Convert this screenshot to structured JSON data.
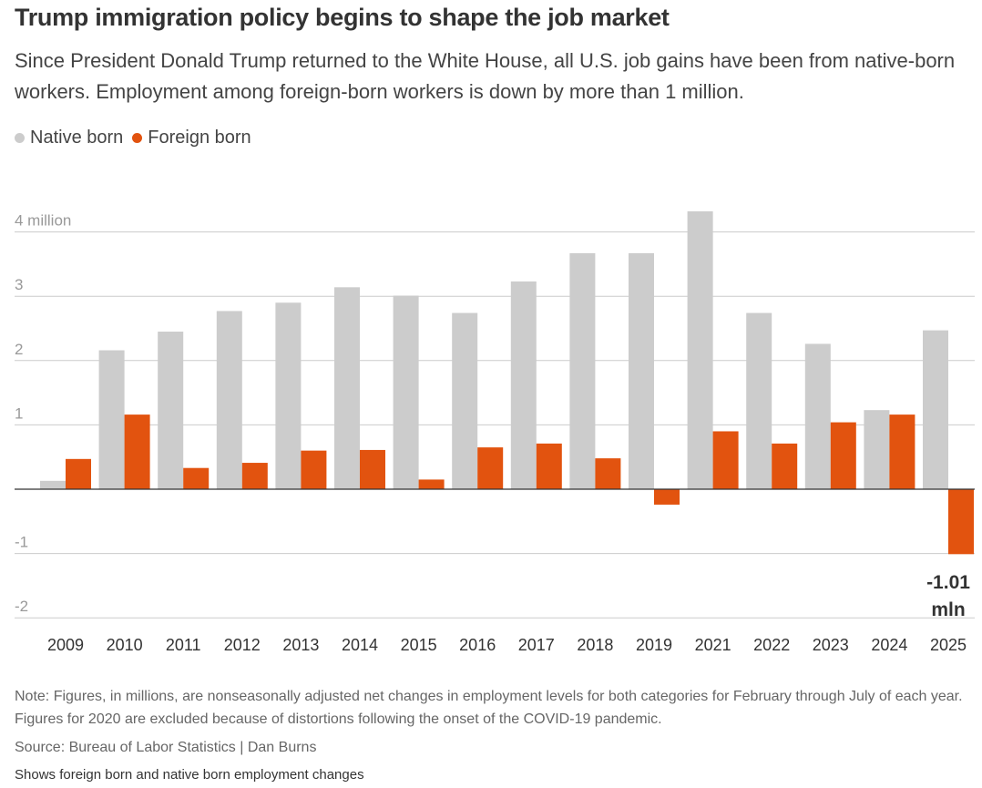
{
  "header": {
    "title": "Trump immigration policy begins to shape the job market",
    "subtitle": "Since President Donald Trump returned to the White House, all U.S. job gains have been from native-born workers. Employment among foreign-born workers is down by more than 1 million."
  },
  "legend": {
    "native_label": "Native born",
    "foreign_label": "Foreign born"
  },
  "colors": {
    "native": "#cccccc",
    "foreign": "#e2530f",
    "gridline": "#cccccc",
    "axis": "#333333"
  },
  "chart_data": {
    "type": "bar",
    "categories": [
      "2009",
      "2010",
      "2011",
      "2012",
      "2013",
      "2014",
      "2015",
      "2016",
      "2017",
      "2018",
      "2019",
      "2021",
      "2022",
      "2023",
      "2024",
      "2025"
    ],
    "series": [
      {
        "name": "Native born",
        "values": [
          0.13,
          2.16,
          2.45,
          2.77,
          2.9,
          3.14,
          3.01,
          2.74,
          3.23,
          3.67,
          3.67,
          4.32,
          2.74,
          2.26,
          1.23,
          2.47
        ]
      },
      {
        "name": "Foreign born",
        "values": [
          0.47,
          1.16,
          0.33,
          0.41,
          0.6,
          0.61,
          0.15,
          0.65,
          0.71,
          0.48,
          -0.24,
          0.9,
          0.71,
          1.04,
          1.16,
          -1.01
        ]
      }
    ],
    "yticks": [
      {
        "value": 4,
        "label": "4 million"
      },
      {
        "value": 3,
        "label": "3"
      },
      {
        "value": 2,
        "label": "2"
      },
      {
        "value": 1,
        "label": "1"
      },
      {
        "value": -1,
        "label": "-1"
      },
      {
        "value": -2,
        "label": "-2"
      }
    ],
    "ylim": [
      -2,
      4.3
    ],
    "annotation": {
      "line1": "-1.01",
      "line2": "mln"
    },
    "xlabel": "",
    "ylabel": ""
  },
  "footer": {
    "note": "Note: Figures, in millions, are nonseasonally adjusted net changes in employment levels for both categories for February through July of each year. Figures for 2020 are excluded because of distortions following the onset of the COVID-19 pandemic.",
    "source": "Source: Bureau of Labor Statistics | Dan Burns",
    "caption": "Shows foreign born and native born employment changes"
  }
}
